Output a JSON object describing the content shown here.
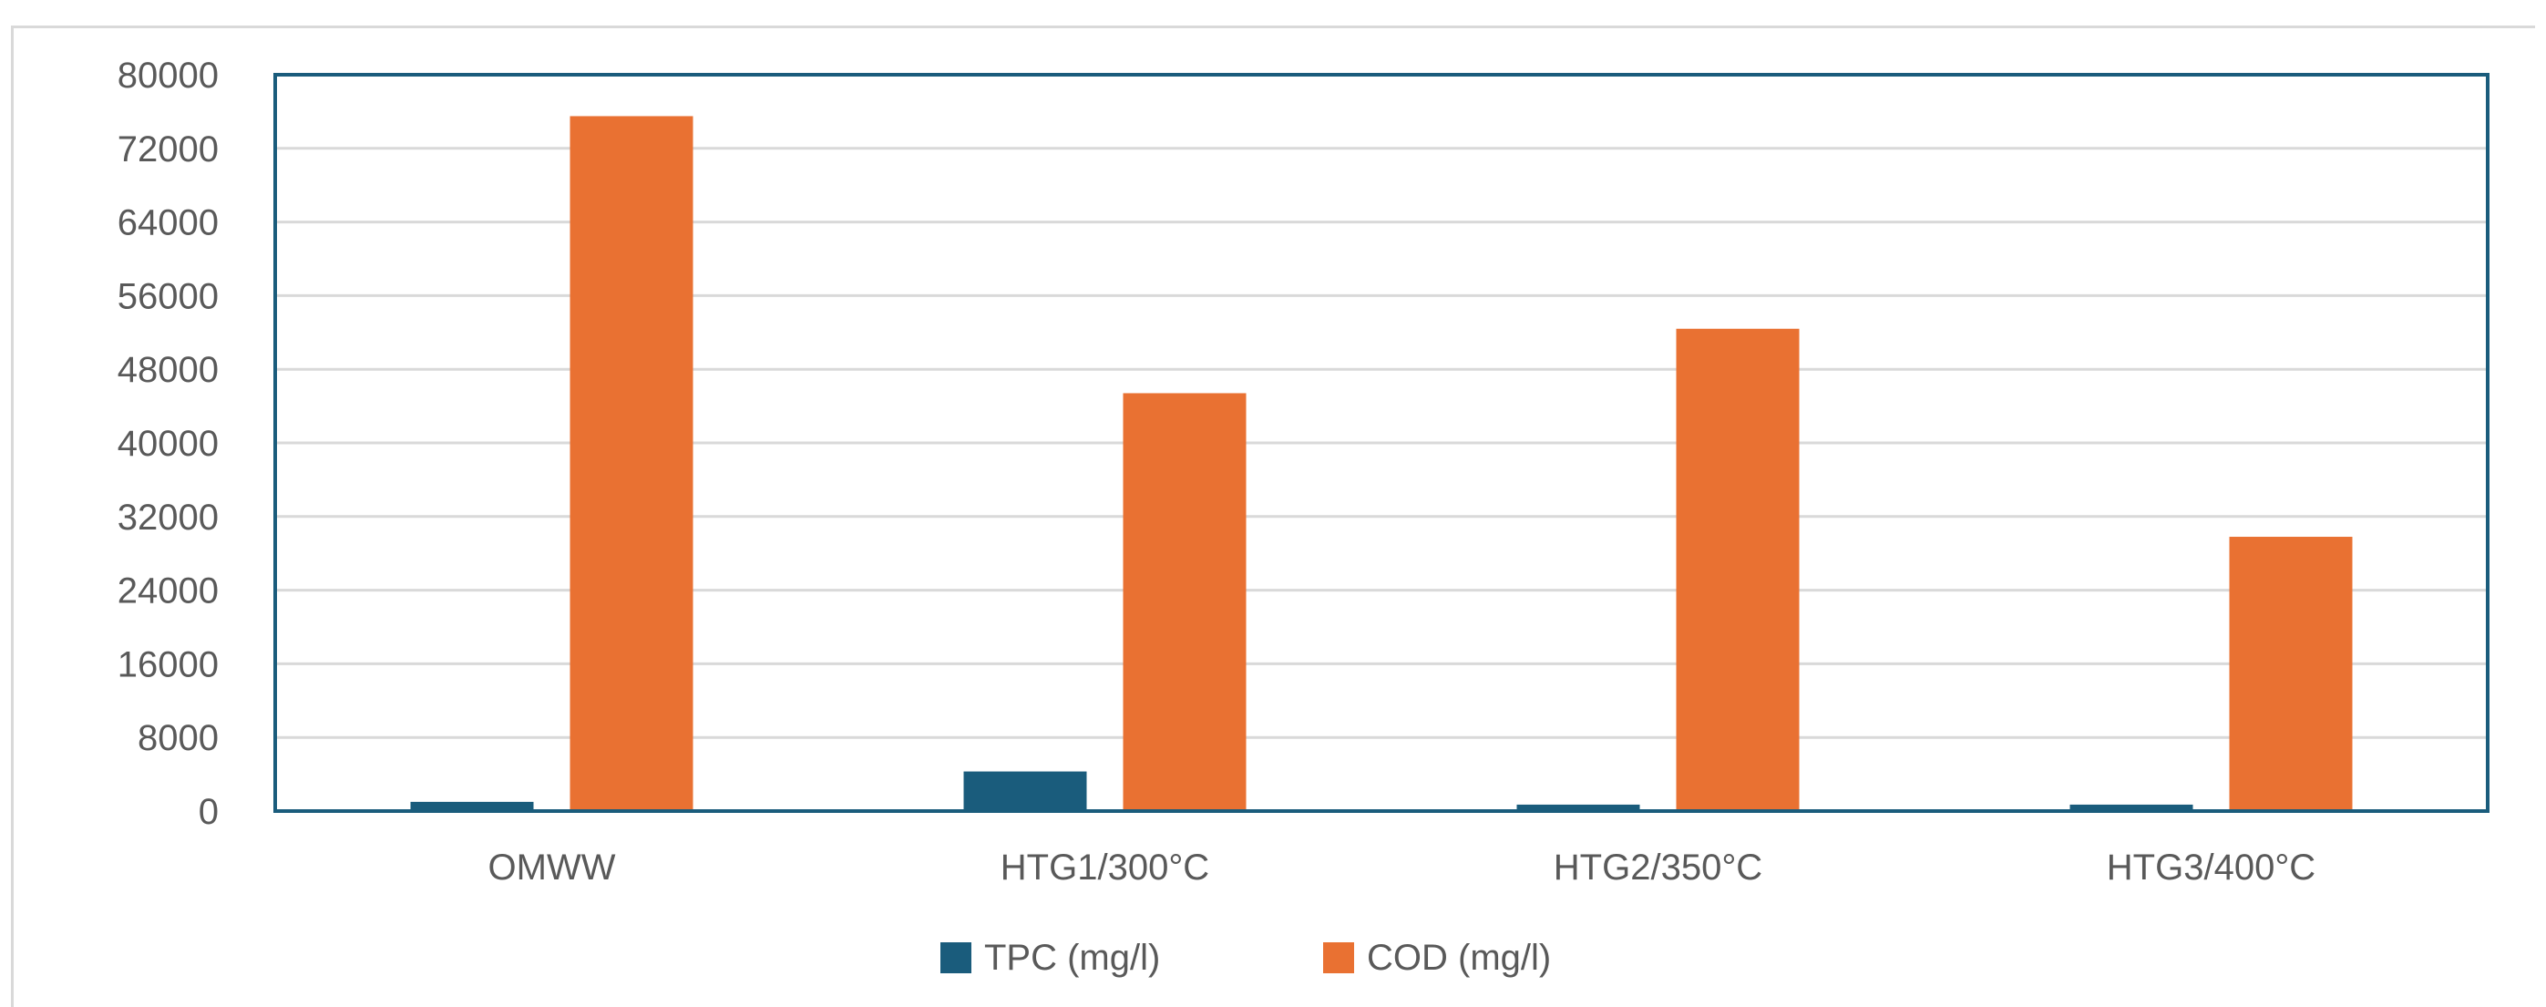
{
  "chart_data": {
    "type": "bar",
    "categories": [
      "OMWW",
      "HTG1/300°C",
      "HTG2/350°C",
      "HTG3/400°C"
    ],
    "series": [
      {
        "name": "TPC (mg/l)",
        "values": [
          1000,
          4300,
          700,
          700
        ]
      },
      {
        "name": "COD (mg/l)",
        "values": [
          75500,
          45400,
          52400,
          29800
        ]
      }
    ],
    "y_ticks": [
      "0",
      "8000",
      "16000",
      "24000",
      "32000",
      "40000",
      "48000",
      "56000",
      "64000",
      "72000",
      "80000"
    ],
    "ylim": [
      0,
      80000
    ],
    "grid": true,
    "legend": "bottom",
    "colors": {
      "TPC (mg/l)": "#1a5c7c",
      "COD (mg/l)": "#e97132",
      "axis_frame": "#1a5c7c",
      "grid": "#d9d9d9"
    }
  }
}
